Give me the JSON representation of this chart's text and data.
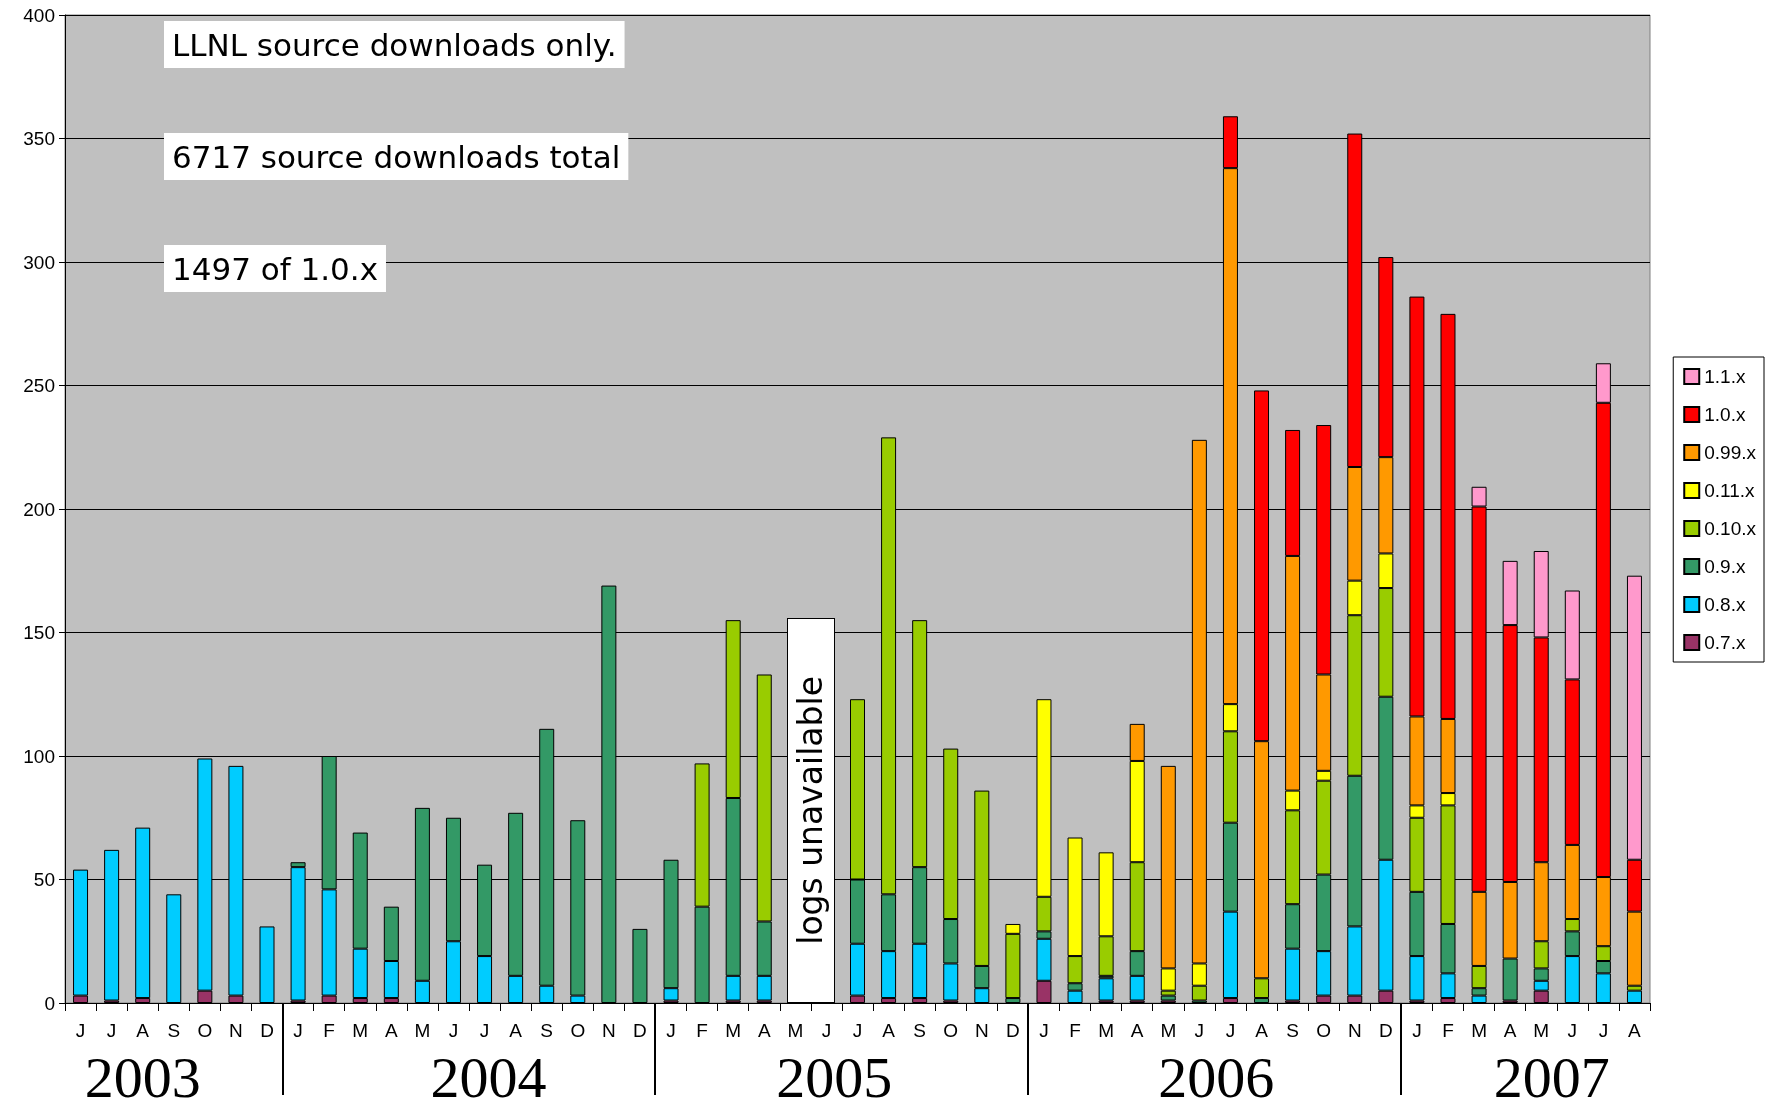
{
  "chart_data": {
    "type": "bar",
    "stacked": true,
    "categories": [
      "J",
      "J",
      "A",
      "S",
      "O",
      "N",
      "D",
      "J",
      "F",
      "M",
      "A",
      "M",
      "J",
      "J",
      "A",
      "S",
      "O",
      "N",
      "D",
      "J",
      "F",
      "M",
      "A",
      "M",
      "J",
      "J",
      "A",
      "S",
      "O",
      "N",
      "D",
      "J",
      "F",
      "M",
      "A",
      "M",
      "J",
      "J",
      "A",
      "S",
      "O",
      "N",
      "D",
      "J",
      "F",
      "M",
      "A",
      "M",
      "J",
      "J",
      "A"
    ],
    "series": [
      {
        "name": "0.7.x",
        "color": "#993366",
        "values": [
          3,
          1,
          2,
          null,
          5,
          3,
          null,
          1,
          3,
          2,
          2,
          null,
          null,
          null,
          null,
          null,
          null,
          null,
          null,
          1,
          null,
          1,
          1,
          null,
          null,
          3,
          2,
          2,
          1,
          null,
          null,
          9,
          null,
          1,
          1,
          1,
          null,
          2,
          null,
          1,
          3,
          3,
          5,
          1,
          2,
          null,
          1,
          5,
          null,
          null,
          null
        ]
      },
      {
        "name": "0.8.x",
        "color": "#00ccff",
        "values": [
          51,
          61,
          69,
          44,
          94,
          93,
          31,
          54,
          43,
          20,
          15,
          9,
          25,
          19,
          11,
          7,
          3,
          null,
          null,
          5,
          null,
          10,
          10,
          null,
          null,
          21,
          19,
          22,
          15,
          6,
          null,
          17,
          5,
          9,
          10,
          null,
          null,
          35,
          null,
          21,
          18,
          28,
          53,
          18,
          10,
          3,
          null,
          4,
          19,
          12,
          5
        ]
      },
      {
        "name": "0.9.x",
        "color": "#339966",
        "values": [
          null,
          null,
          null,
          null,
          null,
          null,
          null,
          2,
          54,
          47,
          22,
          70,
          50,
          37,
          66,
          104,
          71,
          169,
          30,
          52,
          39,
          72,
          22,
          null,
          null,
          26,
          23,
          31,
          18,
          9,
          2,
          3,
          3,
          1,
          10,
          2,
          1,
          36,
          2,
          18,
          31,
          61,
          66,
          26,
          20,
          3,
          17,
          5,
          10,
          5,
          null
        ]
      },
      {
        "name": "0.10.x",
        "color": "#99cc00",
        "values": [
          null,
          null,
          null,
          null,
          null,
          null,
          null,
          null,
          null,
          null,
          null,
          null,
          null,
          null,
          null,
          null,
          null,
          null,
          null,
          null,
          58,
          72,
          100,
          null,
          null,
          73,
          185,
          100,
          69,
          71,
          26,
          14,
          11,
          16,
          36,
          2,
          6,
          37,
          8,
          38,
          38,
          65,
          44,
          30,
          48,
          9,
          null,
          11,
          5,
          6,
          2
        ]
      },
      {
        "name": "0.11.x",
        "color": "#ffff00",
        "values": [
          null,
          null,
          null,
          null,
          null,
          null,
          null,
          null,
          null,
          null,
          null,
          null,
          null,
          null,
          null,
          null,
          null,
          null,
          null,
          null,
          null,
          null,
          null,
          null,
          null,
          null,
          null,
          null,
          null,
          null,
          4,
          80,
          48,
          34,
          41,
          9,
          9,
          11,
          null,
          8,
          4,
          14,
          14,
          5,
          5,
          null,
          null,
          null,
          null,
          null,
          null
        ]
      },
      {
        "name": "0.99.x",
        "color": "#ff9900",
        "values": [
          null,
          null,
          null,
          null,
          null,
          null,
          null,
          null,
          null,
          null,
          null,
          null,
          null,
          null,
          null,
          null,
          null,
          null,
          null,
          null,
          null,
          null,
          null,
          null,
          null,
          null,
          null,
          null,
          null,
          null,
          null,
          null,
          null,
          null,
          15,
          82,
          212,
          217,
          96,
          95,
          39,
          46,
          39,
          36,
          30,
          30,
          31,
          32,
          30,
          28,
          30
        ]
      },
      {
        "name": "1.0.x",
        "color": "#ff0000",
        "values": [
          null,
          null,
          null,
          null,
          null,
          null,
          null,
          null,
          null,
          null,
          null,
          null,
          null,
          null,
          null,
          null,
          null,
          null,
          null,
          null,
          null,
          null,
          null,
          null,
          null,
          null,
          null,
          null,
          null,
          null,
          null,
          null,
          null,
          null,
          null,
          null,
          null,
          21,
          142,
          51,
          101,
          135,
          81,
          170,
          164,
          156,
          104,
          91,
          67,
          192,
          21
        ]
      },
      {
        "name": "1.1.x",
        "color": "#ff99cc",
        "values": [
          null,
          null,
          null,
          null,
          null,
          null,
          null,
          null,
          null,
          null,
          null,
          null,
          null,
          null,
          null,
          null,
          null,
          null,
          null,
          null,
          null,
          null,
          null,
          null,
          null,
          null,
          null,
          null,
          null,
          null,
          null,
          null,
          null,
          null,
          null,
          null,
          null,
          null,
          null,
          null,
          null,
          null,
          null,
          null,
          null,
          8,
          26,
          35,
          36,
          16,
          115
        ]
      }
    ],
    "ylim": [
      0,
      400
    ],
    "yticks": [
      0,
      50,
      100,
      150,
      200,
      250,
      300,
      350,
      400
    ],
    "grid": "y",
    "legend": "right",
    "annotations": [
      "LLNL source downloads only.",
      "6717 source downloads total",
      "1497 of 1.0.x",
      "logs unavailable",
      "2003",
      "2004",
      "2005",
      "2006",
      "2007"
    ]
  }
}
